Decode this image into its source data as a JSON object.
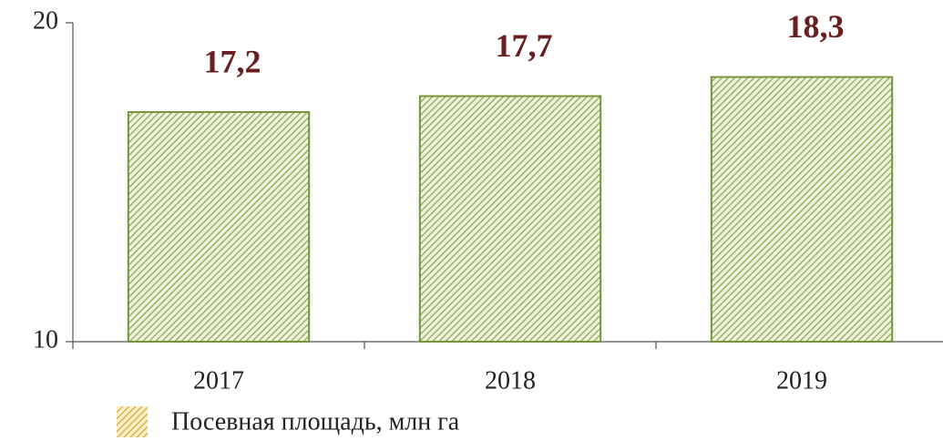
{
  "chart_data": {
    "type": "bar",
    "categories": [
      "2017",
      "2018",
      "2019"
    ],
    "series": [
      {
        "name": "Посевная площадь, млн га",
        "color": "#77933c",
        "values": [
          17.2,
          17.7,
          18.3
        ],
        "value_labels": [
          "17,2",
          "17,7",
          "18,3"
        ]
      }
    ],
    "ylim": [
      10,
      20
    ],
    "yticks": [
      10,
      20
    ]
  }
}
